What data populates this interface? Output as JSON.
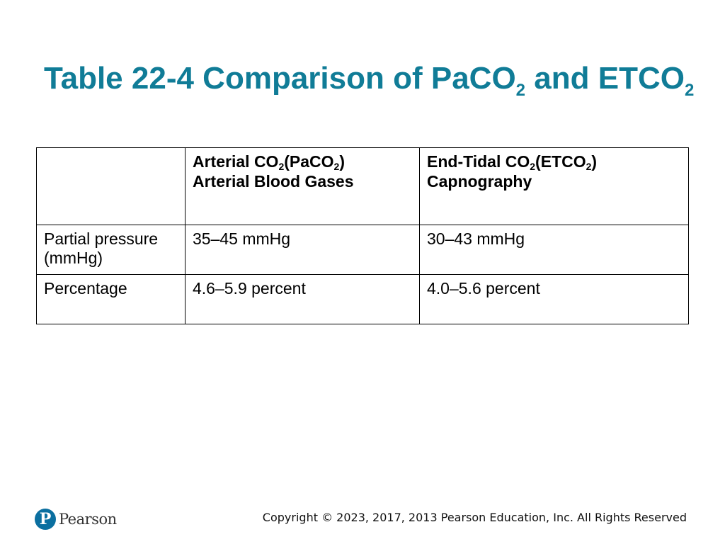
{
  "title": {
    "prefix": "Table 22-4 Comparison of ",
    "term1": "PaCO",
    "term1_sub": "2",
    "conj": " and ",
    "term2": "ETCO",
    "term2_sub": "2"
  },
  "table": {
    "headers": [
      {
        "line1_a": "",
        "line1_b": "",
        "line1_c": "",
        "line1_d": "",
        "line2": ""
      },
      {
        "line1_a": "Arterial ",
        "co": "CO",
        "line1_c": "(PaCO",
        "line1_d": ")",
        "line2": "Arterial Blood Gases"
      },
      {
        "line1_a": "End-Tidal ",
        "co": "CO",
        "line1_c": "(ETCO",
        "line1_d": ")",
        "line2": "Capnography"
      }
    ],
    "sub": "2",
    "rows": [
      {
        "label": "Partial pressure (mmHg)",
        "arterial": "35–45 mmHg",
        "endtidal": "30–43 mmHg"
      },
      {
        "label": "Percentage",
        "arterial": "4.6–5.9 percent",
        "endtidal": "4.0–5.6 percent"
      }
    ]
  },
  "footer": {
    "copyright": "Copyright © 2023, 2017, 2013 Pearson Education, Inc. All Rights Reserved",
    "logo_letter": "P",
    "logo_text": "Pearson"
  },
  "colors": {
    "title": "#107c97",
    "logo": "#0b6fa0"
  }
}
